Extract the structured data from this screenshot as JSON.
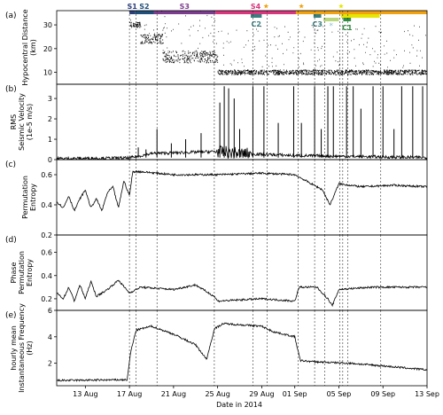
{
  "chart_data": {
    "type": "line",
    "xlabel": "Date in 2014",
    "x_ticks": [
      "13 Aug",
      "17 Aug",
      "21 Aug",
      "25 Aug",
      "29 Aug",
      "01 Sep",
      "05 Sep",
      "09 Sep",
      "13 Sep"
    ],
    "x_tick_days": [
      0,
      4,
      8,
      12,
      16,
      19,
      23,
      27,
      31
    ],
    "xlim_days": [
      -2.6,
      31
    ],
    "segments": {
      "top_row": [
        {
          "label": "S1",
          "start": 4.0,
          "end": 4.5,
          "color": "#2b3f7a"
        },
        {
          "label": "S2",
          "start": 4.5,
          "end": 6.2,
          "color": "#1f4f7a"
        },
        {
          "label": "S3",
          "start": 6.2,
          "end": 11.8,
          "color": "#7d3d8f"
        },
        {
          "label": "S4",
          "start": 11.8,
          "end": 19.1,
          "color": "#d9367d"
        },
        {
          "label": "",
          "start": 19.1,
          "end": 31.0,
          "color": "#f2a20e"
        }
      ],
      "lower_rows": [
        {
          "label": "C2",
          "start": 15.0,
          "end": 16.0,
          "row": 1,
          "color": "#3a7f80"
        },
        {
          "label": "C3",
          "start": 20.7,
          "end": 21.4,
          "row": 1,
          "color": "#3a7f80"
        },
        {
          "label": "",
          "start": 21.6,
          "end": 23.0,
          "row": 2,
          "color": "#b9d77d"
        },
        {
          "label": "C1",
          "start": 23.4,
          "end": 24.1,
          "row": 2,
          "color": "#2e8c3e"
        },
        {
          "label": "",
          "start": 23.2,
          "end": 26.7,
          "row": 1,
          "color": "#e6e600"
        }
      ],
      "stars": [
        {
          "day": 16.4,
          "color": "#f2a20e"
        },
        {
          "day": 19.6,
          "color": "#f2a20e"
        },
        {
          "day": 23.2,
          "color": "#e6e600"
        }
      ],
      "small_markers": [
        {
          "day": 22.3,
          "symbol": "*",
          "color": "#8fc0cf"
        }
      ]
    },
    "vlines_days": [
      4.0,
      4.6,
      6.5,
      11.7,
      15.2,
      16.5,
      19.3,
      20.8,
      21.7,
      23.1,
      23.35,
      23.8,
      26.8
    ],
    "panels": [
      {
        "id": "a",
        "ylabel": [
          "Hypocentral Distance",
          "(km)"
        ],
        "ylim": [
          5,
          36
        ],
        "yticks": [
          10,
          20,
          30
        ],
        "kind": "scatter",
        "clusters": [
          {
            "x": [
              4.0,
              5.0
            ],
            "y": 30,
            "spread": 1.2
          },
          {
            "x": [
              5.0,
              7.0
            ],
            "y": 24,
            "spread": 2
          },
          {
            "x": [
              7.0,
              12.0
            ],
            "y": 16.5,
            "spread": 2.5
          },
          {
            "x": [
              12.0,
              31.0
            ],
            "y": 10,
            "spread": 1
          }
        ]
      },
      {
        "id": "b",
        "ylabel": [
          "RMS",
          "Seismic Velocity",
          "(1e-5 m/s)"
        ],
        "ylim": [
          0,
          3.7
        ],
        "yticks": [
          0,
          1,
          2,
          3
        ],
        "kind": "line",
        "baseline": [
          [
            -2.6,
            0.05
          ],
          [
            4.0,
            0.08
          ],
          [
            6.0,
            0.3
          ],
          [
            12.0,
            0.4
          ],
          [
            14.0,
            0.3
          ],
          [
            19.0,
            0.2
          ],
          [
            31.0,
            0.1
          ]
        ],
        "spikes": [
          [
            4.8,
            0.6
          ],
          [
            5.5,
            0.5
          ],
          [
            6.5,
            1.5
          ],
          [
            7.8,
            0.8
          ],
          [
            9.1,
            1.0
          ],
          [
            10.5,
            1.3
          ],
          [
            12.2,
            2.8
          ],
          [
            12.6,
            3.6
          ],
          [
            13.0,
            3.5
          ],
          [
            13.5,
            3.0
          ],
          [
            14.0,
            1.5
          ],
          [
            15.2,
            3.6
          ],
          [
            16.2,
            3.6
          ],
          [
            17.5,
            1.8
          ],
          [
            18.9,
            3.6
          ],
          [
            19.6,
            1.8
          ],
          [
            20.8,
            3.6
          ],
          [
            21.4,
            1.5
          ],
          [
            22.0,
            3.6
          ],
          [
            22.5,
            3.6
          ],
          [
            23.7,
            3.6
          ],
          [
            24.3,
            3.6
          ],
          [
            25.0,
            2.5
          ],
          [
            26.1,
            3.6
          ],
          [
            27.0,
            3.6
          ],
          [
            28.0,
            1.5
          ],
          [
            28.7,
            3.6
          ],
          [
            29.7,
            3.6
          ],
          [
            30.6,
            3.6
          ]
        ]
      },
      {
        "id": "c",
        "ylabel": [
          "Permutation",
          "Entropy"
        ],
        "ylim": [
          0.2,
          0.7
        ],
        "yticks": [
          0.2,
          0.4,
          0.6
        ],
        "kind": "line",
        "trend": [
          [
            -2.6,
            0.42
          ],
          [
            -2.0,
            0.38
          ],
          [
            -1.5,
            0.46
          ],
          [
            -1.0,
            0.36
          ],
          [
            -0.5,
            0.44
          ],
          [
            0.0,
            0.5
          ],
          [
            0.5,
            0.38
          ],
          [
            1.0,
            0.44
          ],
          [
            1.5,
            0.36
          ],
          [
            2.0,
            0.48
          ],
          [
            2.5,
            0.52
          ],
          [
            3.0,
            0.38
          ],
          [
            3.5,
            0.56
          ],
          [
            4.0,
            0.46
          ],
          [
            4.3,
            0.62
          ],
          [
            5.0,
            0.62
          ],
          [
            8.0,
            0.6
          ],
          [
            12.0,
            0.6
          ],
          [
            16.0,
            0.61
          ],
          [
            19.0,
            0.6
          ],
          [
            20.0,
            0.56
          ],
          [
            21.5,
            0.5
          ],
          [
            22.2,
            0.4
          ],
          [
            23.0,
            0.54
          ],
          [
            25.0,
            0.52
          ],
          [
            28.0,
            0.53
          ],
          [
            31.0,
            0.52
          ]
        ]
      },
      {
        "id": "d",
        "ylabel": [
          "Phase",
          "Permutation",
          "Entropy"
        ],
        "ylim": [
          0.1,
          0.75
        ],
        "yticks": [
          0.2,
          0.4,
          0.6
        ],
        "kind": "line",
        "trend": [
          [
            -2.6,
            0.25
          ],
          [
            -2.0,
            0.2
          ],
          [
            -1.5,
            0.3
          ],
          [
            -1.0,
            0.18
          ],
          [
            -0.5,
            0.32
          ],
          [
            0.0,
            0.2
          ],
          [
            0.5,
            0.35
          ],
          [
            1.0,
            0.22
          ],
          [
            2.0,
            0.28
          ],
          [
            3.0,
            0.36
          ],
          [
            4.0,
            0.25
          ],
          [
            5.0,
            0.3
          ],
          [
            8.0,
            0.28
          ],
          [
            10.0,
            0.32
          ],
          [
            11.7,
            0.22
          ],
          [
            12.0,
            0.18
          ],
          [
            16.0,
            0.2
          ],
          [
            19.0,
            0.18
          ],
          [
            19.4,
            0.3
          ],
          [
            21.0,
            0.3
          ],
          [
            22.0,
            0.2
          ],
          [
            22.4,
            0.14
          ],
          [
            23.0,
            0.28
          ],
          [
            26.0,
            0.3
          ],
          [
            31.0,
            0.3
          ]
        ]
      },
      {
        "id": "e",
        "ylabel": [
          "hourly mean",
          "Instantaneous Frequency",
          "(Hz)"
        ],
        "ylim": [
          0.3,
          6.0
        ],
        "yticks": [
          2,
          4,
          6
        ],
        "kind": "line",
        "trend": [
          [
            -2.6,
            0.7
          ],
          [
            3.8,
            0.75
          ],
          [
            4.1,
            2.8
          ],
          [
            4.6,
            4.5
          ],
          [
            6.0,
            4.8
          ],
          [
            8.0,
            4.2
          ],
          [
            10.0,
            3.4
          ],
          [
            11.0,
            2.3
          ],
          [
            11.7,
            4.6
          ],
          [
            12.5,
            5.0
          ],
          [
            16.0,
            4.8
          ],
          [
            17.0,
            4.4
          ],
          [
            19.0,
            4.0
          ],
          [
            19.5,
            2.2
          ],
          [
            21.0,
            2.1
          ],
          [
            24.0,
            2.0
          ],
          [
            27.0,
            1.8
          ],
          [
            31.0,
            1.5
          ]
        ]
      }
    ]
  }
}
